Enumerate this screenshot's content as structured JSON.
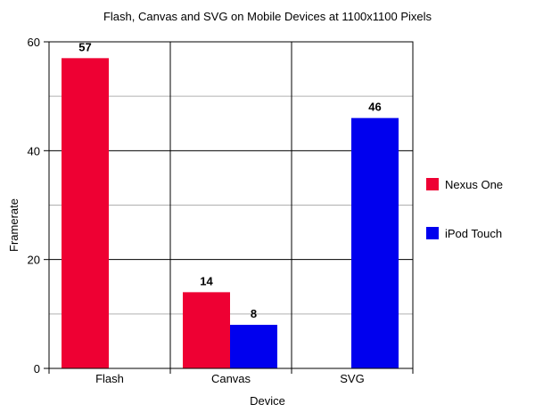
{
  "chart_data": {
    "type": "bar",
    "title": "Flash, Canvas and SVG on Mobile Devices at 1100x1100 Pixels",
    "xlabel": "Device",
    "ylabel": "Framerate",
    "categories": [
      "Flash",
      "Canvas",
      "SVG"
    ],
    "series": [
      {
        "name": "Nexus One",
        "color": "#ee0033",
        "values": [
          57,
          14,
          null
        ]
      },
      {
        "name": "iPod Touch",
        "color": "#0000ee",
        "values": [
          null,
          8,
          46
        ]
      }
    ],
    "ylim": [
      0,
      60
    ],
    "yticks": [
      0,
      20,
      40,
      60
    ],
    "minor_gridlines": [
      10,
      30,
      50
    ],
    "grid": true,
    "legend_position": "right"
  }
}
